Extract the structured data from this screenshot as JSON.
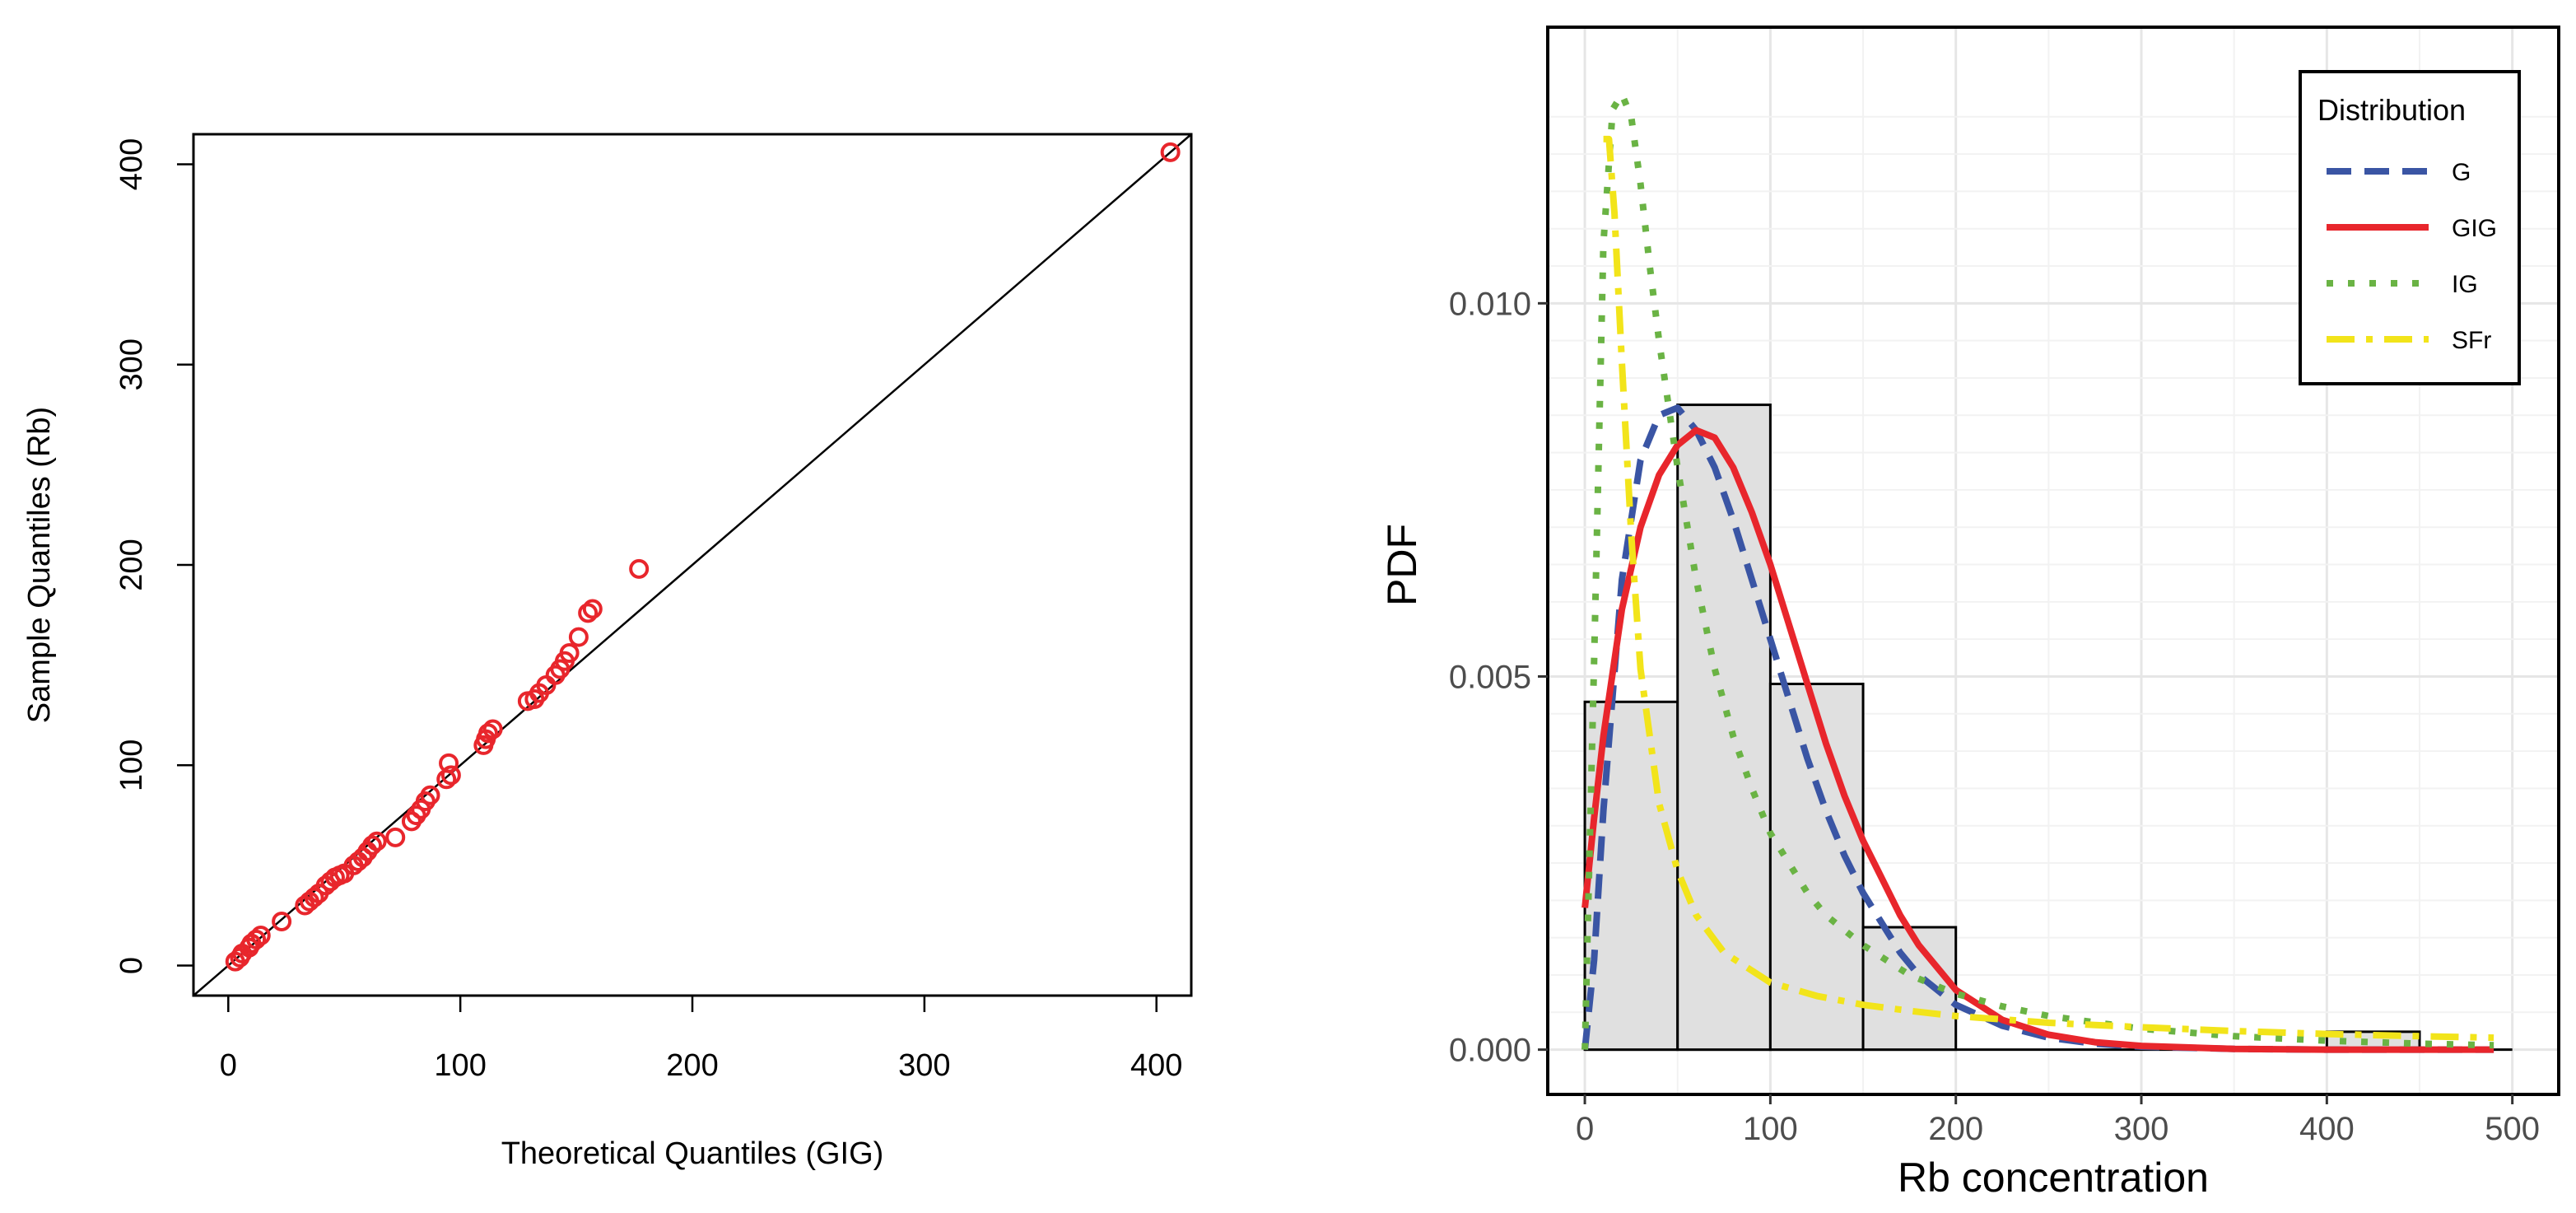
{
  "chart_data": [
    {
      "type": "scatter",
      "title": "",
      "xlabel": "Theoretical Quantiles (GIG)",
      "ylabel": "Sample Quantiles (Rb)",
      "xlim": [
        -15,
        415
      ],
      "ylim": [
        -15,
        415
      ],
      "xticks": [
        0,
        100,
        200,
        300,
        400
      ],
      "yticks": [
        0,
        100,
        200,
        300,
        400
      ],
      "reference_line": {
        "slope": 1,
        "intercept": 0,
        "color": "#000000"
      },
      "point_color": "#e8262c",
      "points": [
        [
          3,
          2
        ],
        [
          5,
          4
        ],
        [
          6,
          6
        ],
        [
          9,
          9
        ],
        [
          10,
          11
        ],
        [
          12,
          13
        ],
        [
          14,
          15
        ],
        [
          23,
          22
        ],
        [
          33,
          30
        ],
        [
          35,
          32
        ],
        [
          37,
          34
        ],
        [
          39,
          36
        ],
        [
          42,
          40
        ],
        [
          44,
          42
        ],
        [
          46,
          44
        ],
        [
          48,
          45
        ],
        [
          50,
          46
        ],
        [
          54,
          50
        ],
        [
          56,
          52
        ],
        [
          58,
          54
        ],
        [
          60,
          57
        ],
        [
          62,
          60
        ],
        [
          64,
          62
        ],
        [
          72,
          64
        ],
        [
          79,
          72
        ],
        [
          81,
          75
        ],
        [
          83,
          78
        ],
        [
          85,
          82
        ],
        [
          87,
          85
        ],
        [
          94,
          93
        ],
        [
          96,
          95
        ],
        [
          95,
          101
        ],
        [
          110,
          110
        ],
        [
          111,
          113
        ],
        [
          112,
          116
        ],
        [
          114,
          118
        ],
        [
          129,
          132
        ],
        [
          132,
          133
        ],
        [
          134,
          136
        ],
        [
          137,
          140
        ],
        [
          141,
          145
        ],
        [
          143,
          148
        ],
        [
          145,
          152
        ],
        [
          147,
          156
        ],
        [
          151,
          164
        ],
        [
          155,
          176
        ],
        [
          157,
          178
        ],
        [
          177,
          198
        ],
        [
          406,
          406
        ]
      ]
    },
    {
      "type": "histogram_with_density",
      "title": "",
      "xlabel": "Rb concentration",
      "ylabel": "PDF",
      "xlim": [
        -20,
        525
      ],
      "ylim": [
        -0.0006,
        0.0137
      ],
      "xticks": [
        0,
        100,
        200,
        300,
        400,
        500
      ],
      "yticks": [
        {
          "value": 0.0,
          "label": "0.000"
        },
        {
          "value": 0.005,
          "label": "0.005"
        },
        {
          "value": 0.01,
          "label": "0.010"
        }
      ],
      "bar_color": "#e0e0e0",
      "bins": [
        {
          "start": 0,
          "end": 50,
          "density": 0.00466
        },
        {
          "start": 50,
          "end": 100,
          "density": 0.00864
        },
        {
          "start": 100,
          "end": 150,
          "density": 0.0049
        },
        {
          "start": 150,
          "end": 200,
          "density": 0.00164
        },
        {
          "start": 200,
          "end": 250,
          "density": 0.0
        },
        {
          "start": 250,
          "end": 300,
          "density": 0.0
        },
        {
          "start": 300,
          "end": 350,
          "density": 0.0
        },
        {
          "start": 350,
          "end": 400,
          "density": 0.0
        },
        {
          "start": 400,
          "end": 450,
          "density": 0.00024
        }
      ],
      "legend": {
        "title": "Distribution",
        "position": "top-right"
      },
      "series": [
        {
          "name": "G",
          "color": "#3a55a4",
          "dash": "dashed",
          "x": [
            0,
            5,
            10,
            20,
            30,
            40,
            50,
            60,
            70,
            80,
            90,
            100,
            110,
            120,
            130,
            140,
            150,
            160,
            170,
            180,
            200,
            225,
            250,
            275,
            300,
            350,
            400,
            450,
            490
          ],
          "y": [
            0.0,
            0.0012,
            0.0032,
            0.0063,
            0.0079,
            0.0085,
            0.0086,
            0.0083,
            0.0078,
            0.0071,
            0.0063,
            0.0055,
            0.0047,
            0.0039,
            0.0032,
            0.0026,
            0.0021,
            0.0017,
            0.0013,
            0.001,
            0.0006,
            0.00032,
            0.00016,
            8e-05,
            4e-05,
            1e-05,
            0.0,
            0.0,
            0.0
          ]
        },
        {
          "name": "GIG",
          "color": "#e8262c",
          "dash": "solid",
          "x": [
            0,
            5,
            10,
            20,
            30,
            40,
            50,
            60,
            70,
            80,
            90,
            100,
            110,
            120,
            130,
            140,
            150,
            160,
            170,
            180,
            200,
            225,
            250,
            275,
            300,
            350,
            400,
            450,
            490
          ],
          "y": [
            0.0019,
            0.0031,
            0.0042,
            0.0059,
            0.007,
            0.0077,
            0.0081,
            0.0083,
            0.0082,
            0.0078,
            0.0072,
            0.0065,
            0.0057,
            0.0049,
            0.0041,
            0.0034,
            0.0028,
            0.0023,
            0.0018,
            0.0014,
            0.0008,
            0.0004,
            0.0002,
            0.0001,
            5e-05,
            1e-05,
            0.0,
            0.0,
            0.0
          ]
        },
        {
          "name": "IG",
          "color": "#6ab344",
          "dash": "dotted",
          "x": [
            0,
            5,
            10,
            15,
            20,
            25,
            30,
            35,
            40,
            50,
            60,
            70,
            80,
            90,
            100,
            110,
            120,
            130,
            140,
            150,
            175,
            200,
            225,
            250,
            300,
            350,
            400,
            450,
            490
          ],
          "y": [
            0.0,
            0.0052,
            0.0108,
            0.0126,
            0.0128,
            0.0125,
            0.0116,
            0.0105,
            0.0095,
            0.0078,
            0.0063,
            0.0051,
            0.0042,
            0.0035,
            0.0029,
            0.0025,
            0.0021,
            0.0018,
            0.0016,
            0.0014,
            0.001,
            0.00075,
            0.00058,
            0.00045,
            0.00028,
            0.00018,
            0.00012,
            8e-05,
            6e-05
          ]
        },
        {
          "name": "SFr",
          "color": "#f2e41a",
          "dash": "dotdash",
          "x": [
            10,
            13,
            16,
            20,
            25,
            30,
            40,
            50,
            60,
            75,
            100,
            125,
            150,
            175,
            200,
            250,
            300,
            350,
            400,
            450,
            490
          ],
          "y": [
            0.0122,
            0.0122,
            0.0112,
            0.0092,
            0.0069,
            0.0051,
            0.0033,
            0.0024,
            0.0018,
            0.0013,
            0.0009,
            0.00072,
            0.0006,
            0.00052,
            0.00045,
            0.00036,
            0.0003,
            0.00025,
            0.00021,
            0.00018,
            0.00016
          ]
        }
      ]
    }
  ]
}
